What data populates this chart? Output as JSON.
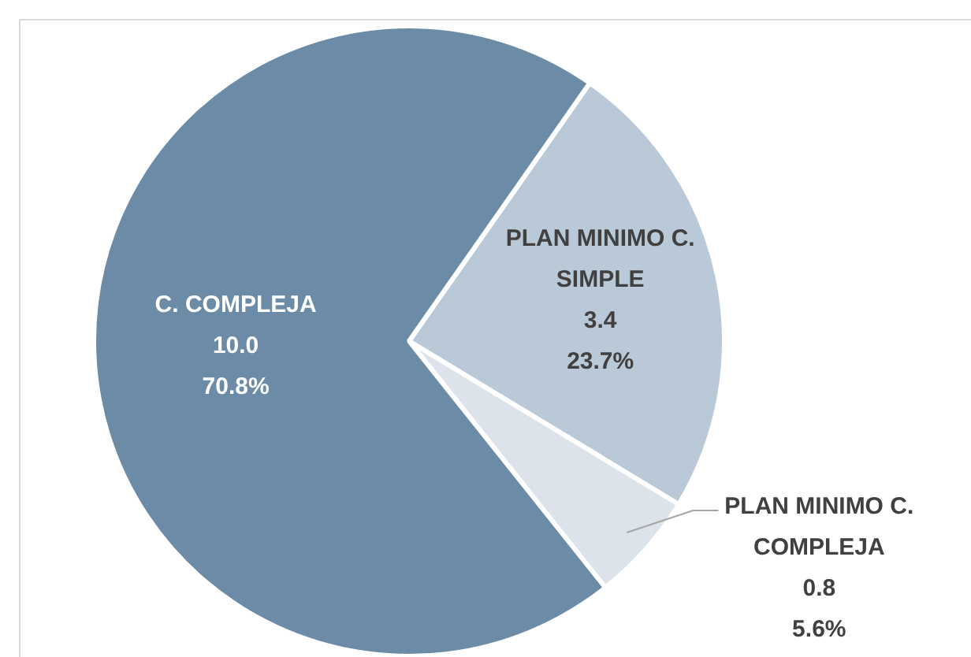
{
  "chart_data": {
    "type": "pie",
    "categories": [
      "PLAN MINIMO C. SIMPLE",
      "PLAN MINIMO C. COMPLEJA",
      "C. COMPLEJA"
    ],
    "values": [
      3.4,
      0.8,
      10.0
    ],
    "colors": [
      "#b9c9d7",
      "#dce3ea",
      "#6b8ba6"
    ],
    "value_labels": [
      "3.4\n23.7%",
      "0.8\n5.6%",
      "10.0\n70.8%"
    ]
  }
}
